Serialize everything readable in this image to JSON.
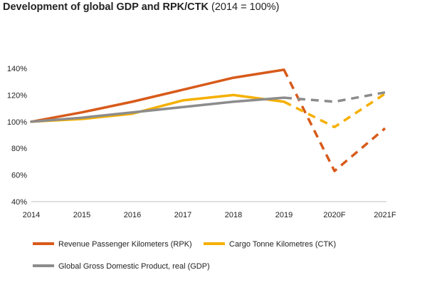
{
  "chart_data": {
    "type": "line",
    "title": "Development of global GDP and RPK/CTK",
    "title_suffix": "(2014 = 100%)",
    "categories": [
      "2014",
      "2015",
      "2016",
      "2017",
      "2018",
      "2019",
      "2020F",
      "2021F"
    ],
    "ylim": [
      40,
      140
    ],
    "yticks": [
      40,
      60,
      80,
      100,
      120,
      140
    ],
    "ytick_labels": [
      "40%",
      "60%",
      "80%",
      "100%",
      "120%",
      "140%"
    ],
    "forecast_start_index": 5,
    "series": [
      {
        "key": "rpk",
        "name": "Revenue Passenger Kilometers (RPK)",
        "color": "#d85a1a",
        "values": [
          100,
          107,
          115,
          124,
          133,
          139,
          63,
          95
        ]
      },
      {
        "key": "ctk",
        "name": "Cargo Tonne Kilometres (CTK)",
        "color": "#f5b000",
        "values": [
          100,
          102,
          106,
          116,
          120,
          115,
          96,
          121
        ]
      },
      {
        "key": "gdp",
        "name": "Global Gross Domestic Product, real (GDP)",
        "color": "#8c8c8c",
        "values": [
          100,
          103,
          107,
          111,
          115,
          118,
          115,
          122
        ]
      }
    ]
  }
}
